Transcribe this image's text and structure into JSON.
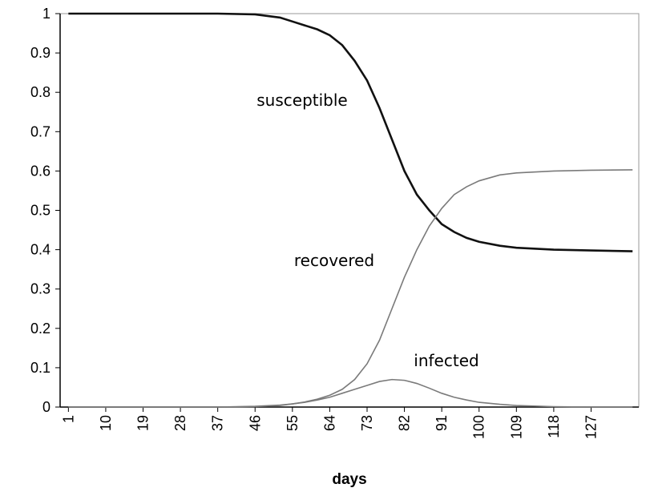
{
  "chart_data": {
    "type": "line",
    "x_label": "days",
    "x": [
      1,
      10,
      19,
      28,
      37,
      46,
      52,
      55,
      58,
      61,
      64,
      67,
      70,
      73,
      76,
      79,
      82,
      85,
      88,
      91,
      94,
      97,
      100,
      105,
      109,
      118,
      127,
      137
    ],
    "series": [
      {
        "name": "susceptible",
        "color": "#111111",
        "values": [
          1,
          1,
          1,
          1,
          1,
          0.998,
          0.99,
          0.98,
          0.97,
          0.96,
          0.945,
          0.92,
          0.88,
          0.83,
          0.76,
          0.68,
          0.6,
          0.54,
          0.5,
          0.465,
          0.445,
          0.43,
          0.42,
          0.41,
          0.405,
          0.4,
          0.398,
          0.396
        ]
      },
      {
        "name": "recovered",
        "color": "#7a7a7a",
        "values": [
          0,
          0,
          0,
          0,
          0,
          0.002,
          0.005,
          0.008,
          0.013,
          0.02,
          0.03,
          0.045,
          0.07,
          0.11,
          0.17,
          0.25,
          0.33,
          0.4,
          0.46,
          0.505,
          0.54,
          0.56,
          0.575,
          0.59,
          0.595,
          0.6,
          0.602,
          0.603
        ]
      },
      {
        "name": "infected",
        "color": "#7a7a7a",
        "values": [
          0,
          0,
          0,
          0,
          0,
          0.001,
          0.004,
          0.008,
          0.012,
          0.018,
          0.025,
          0.035,
          0.045,
          0.055,
          0.065,
          0.07,
          0.068,
          0.06,
          0.048,
          0.035,
          0.025,
          0.018,
          0.012,
          0.007,
          0.004,
          0.001,
          0,
          0
        ]
      }
    ],
    "xlim": [
      -1,
      138.5
    ],
    "xticks": [
      1,
      10,
      19,
      28,
      37,
      46,
      55,
      64,
      73,
      82,
      91,
      100,
      109,
      118,
      127
    ],
    "ylim": [
      0,
      1
    ],
    "yticks": [
      0,
      0.1,
      0.2,
      0.3,
      0.4,
      0.5,
      0.6,
      0.7,
      0.8,
      0.9,
      1
    ],
    "grid": false
  }
}
